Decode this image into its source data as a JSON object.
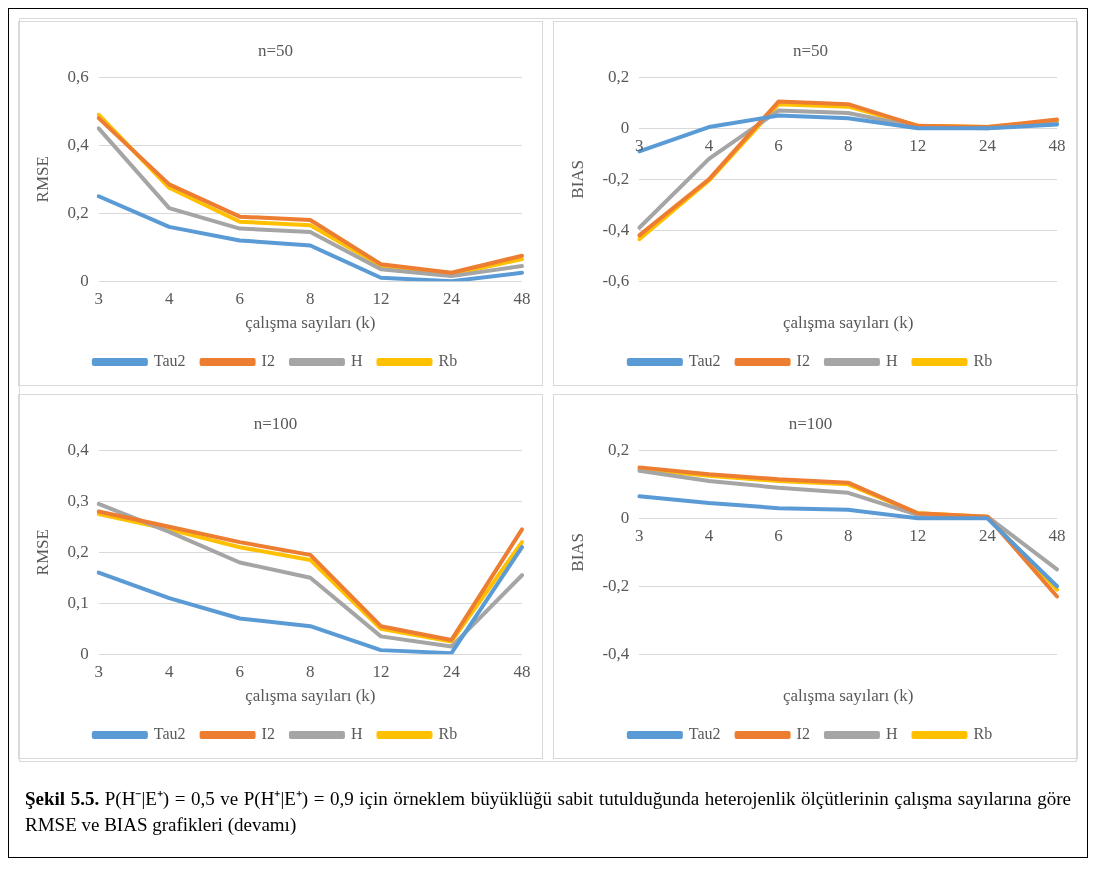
{
  "chart_data": [
    {
      "type": "line",
      "title": "n=50",
      "xlabel": "çalışma sayıları (k)",
      "ylabel": "RMSE",
      "categories": [
        "3",
        "4",
        "6",
        "8",
        "12",
        "24",
        "48"
      ],
      "ylim": [
        0,
        0.6
      ],
      "yticks": [
        {
          "value": 0,
          "label": "0"
        },
        {
          "value": 0.2,
          "label": "0,2"
        },
        {
          "value": 0.4,
          "label": "0,4"
        },
        {
          "value": 0.6,
          "label": "0,6"
        }
      ],
      "grid": "y",
      "legend": "bottom",
      "marker": "none",
      "line_style": "solid",
      "series": [
        {
          "name": "Tau2",
          "color": "#5b9bd5",
          "values": [
            0.25,
            0.16,
            0.12,
            0.105,
            0.01,
            0.0,
            0.025
          ]
        },
        {
          "name": "I2",
          "color": "#ed7d31",
          "values": [
            0.48,
            0.285,
            0.19,
            0.18,
            0.05,
            0.025,
            0.075
          ]
        },
        {
          "name": "H",
          "color": "#a5a5a5",
          "values": [
            0.45,
            0.215,
            0.155,
            0.145,
            0.035,
            0.015,
            0.045
          ]
        },
        {
          "name": "Rb",
          "color": "#ffc000",
          "values": [
            0.49,
            0.275,
            0.175,
            0.165,
            0.045,
            0.02,
            0.065
          ]
        }
      ]
    },
    {
      "type": "line",
      "title": "n=50",
      "xlabel": "çalışma sayıları (k)",
      "ylabel": "BIAS",
      "categories": [
        "3",
        "4",
        "6",
        "8",
        "12",
        "24",
        "48"
      ],
      "ylim": [
        -0.6,
        0.2
      ],
      "yticks": [
        {
          "value": -0.6,
          "label": "-0,6"
        },
        {
          "value": -0.4,
          "label": "-0,4"
        },
        {
          "value": -0.2,
          "label": "-0,2"
        },
        {
          "value": 0,
          "label": "0"
        },
        {
          "value": 0.2,
          "label": "0,2"
        }
      ],
      "grid": "y",
      "legend": "bottom",
      "marker": "none",
      "line_style": "solid",
      "series": [
        {
          "name": "Tau2",
          "color": "#5b9bd5",
          "values": [
            -0.09,
            0.005,
            0.05,
            0.04,
            0.0,
            0.0,
            0.015
          ]
        },
        {
          "name": "I2",
          "color": "#ed7d31",
          "values": [
            -0.42,
            -0.2,
            0.105,
            0.095,
            0.01,
            0.005,
            0.035
          ]
        },
        {
          "name": "H",
          "color": "#a5a5a5",
          "values": [
            -0.39,
            -0.12,
            0.07,
            0.06,
            0.005,
            0.0,
            0.02
          ]
        },
        {
          "name": "Rb",
          "color": "#ffc000",
          "values": [
            -0.435,
            -0.205,
            0.095,
            0.085,
            0.01,
            0.005,
            0.03
          ]
        }
      ]
    },
    {
      "type": "line",
      "title": "n=100",
      "xlabel": "çalışma sayıları (k)",
      "ylabel": "RMSE",
      "categories": [
        "3",
        "4",
        "6",
        "8",
        "12",
        "24",
        "48"
      ],
      "ylim": [
        0,
        0.4
      ],
      "yticks": [
        {
          "value": 0,
          "label": "0"
        },
        {
          "value": 0.1,
          "label": "0,1"
        },
        {
          "value": 0.2,
          "label": "0,2"
        },
        {
          "value": 0.3,
          "label": "0,3"
        },
        {
          "value": 0.4,
          "label": "0,4"
        }
      ],
      "grid": "y",
      "legend": "bottom",
      "marker": "none",
      "line_style": "solid",
      "series": [
        {
          "name": "Tau2",
          "color": "#5b9bd5",
          "values": [
            0.16,
            0.11,
            0.07,
            0.055,
            0.008,
            0.002,
            0.21
          ]
        },
        {
          "name": "I2",
          "color": "#ed7d31",
          "values": [
            0.28,
            0.25,
            0.22,
            0.195,
            0.055,
            0.028,
            0.245
          ]
        },
        {
          "name": "H",
          "color": "#a5a5a5",
          "values": [
            0.295,
            0.24,
            0.18,
            0.15,
            0.035,
            0.015,
            0.155
          ]
        },
        {
          "name": "Rb",
          "color": "#ffc000",
          "values": [
            0.275,
            0.245,
            0.21,
            0.185,
            0.05,
            0.025,
            0.22
          ]
        }
      ]
    },
    {
      "type": "line",
      "title": "n=100",
      "xlabel": "çalışma sayıları (k)",
      "ylabel": "BIAS",
      "categories": [
        "3",
        "4",
        "6",
        "8",
        "12",
        "24",
        "48"
      ],
      "ylim": [
        -0.4,
        0.2
      ],
      "yticks": [
        {
          "value": -0.4,
          "label": "-0,4"
        },
        {
          "value": -0.2,
          "label": "-0,2"
        },
        {
          "value": 0,
          "label": "0"
        },
        {
          "value": 0.2,
          "label": "0,2"
        }
      ],
      "grid": "y",
      "legend": "bottom",
      "marker": "none",
      "line_style": "solid",
      "annotations": [
        "Şekil 5.5.",
        "P(H⁻|E⁺) = 0,5 ve P(H⁺|E⁺) = 0,9 için örneklem büyüklüğü sabit tutulduğunda heterojenlik ölçütlerinin çalışma sayılarına göre RMSE ve BIAS grafikleri (devamı)"
      ],
      "series": [
        {
          "name": "Tau2",
          "color": "#5b9bd5",
          "values": [
            0.065,
            0.045,
            0.03,
            0.025,
            0.0,
            0.0,
            -0.2
          ]
        },
        {
          "name": "I2",
          "color": "#ed7d31",
          "values": [
            0.15,
            0.13,
            0.115,
            0.105,
            0.015,
            0.005,
            -0.23
          ]
        },
        {
          "name": "H",
          "color": "#a5a5a5",
          "values": [
            0.14,
            0.11,
            0.09,
            0.075,
            0.01,
            0.005,
            -0.15
          ]
        },
        {
          "name": "Rb",
          "color": "#ffc000",
          "values": [
            0.145,
            0.125,
            0.11,
            0.1,
            0.015,
            0.005,
            -0.21
          ]
        }
      ]
    }
  ]
}
